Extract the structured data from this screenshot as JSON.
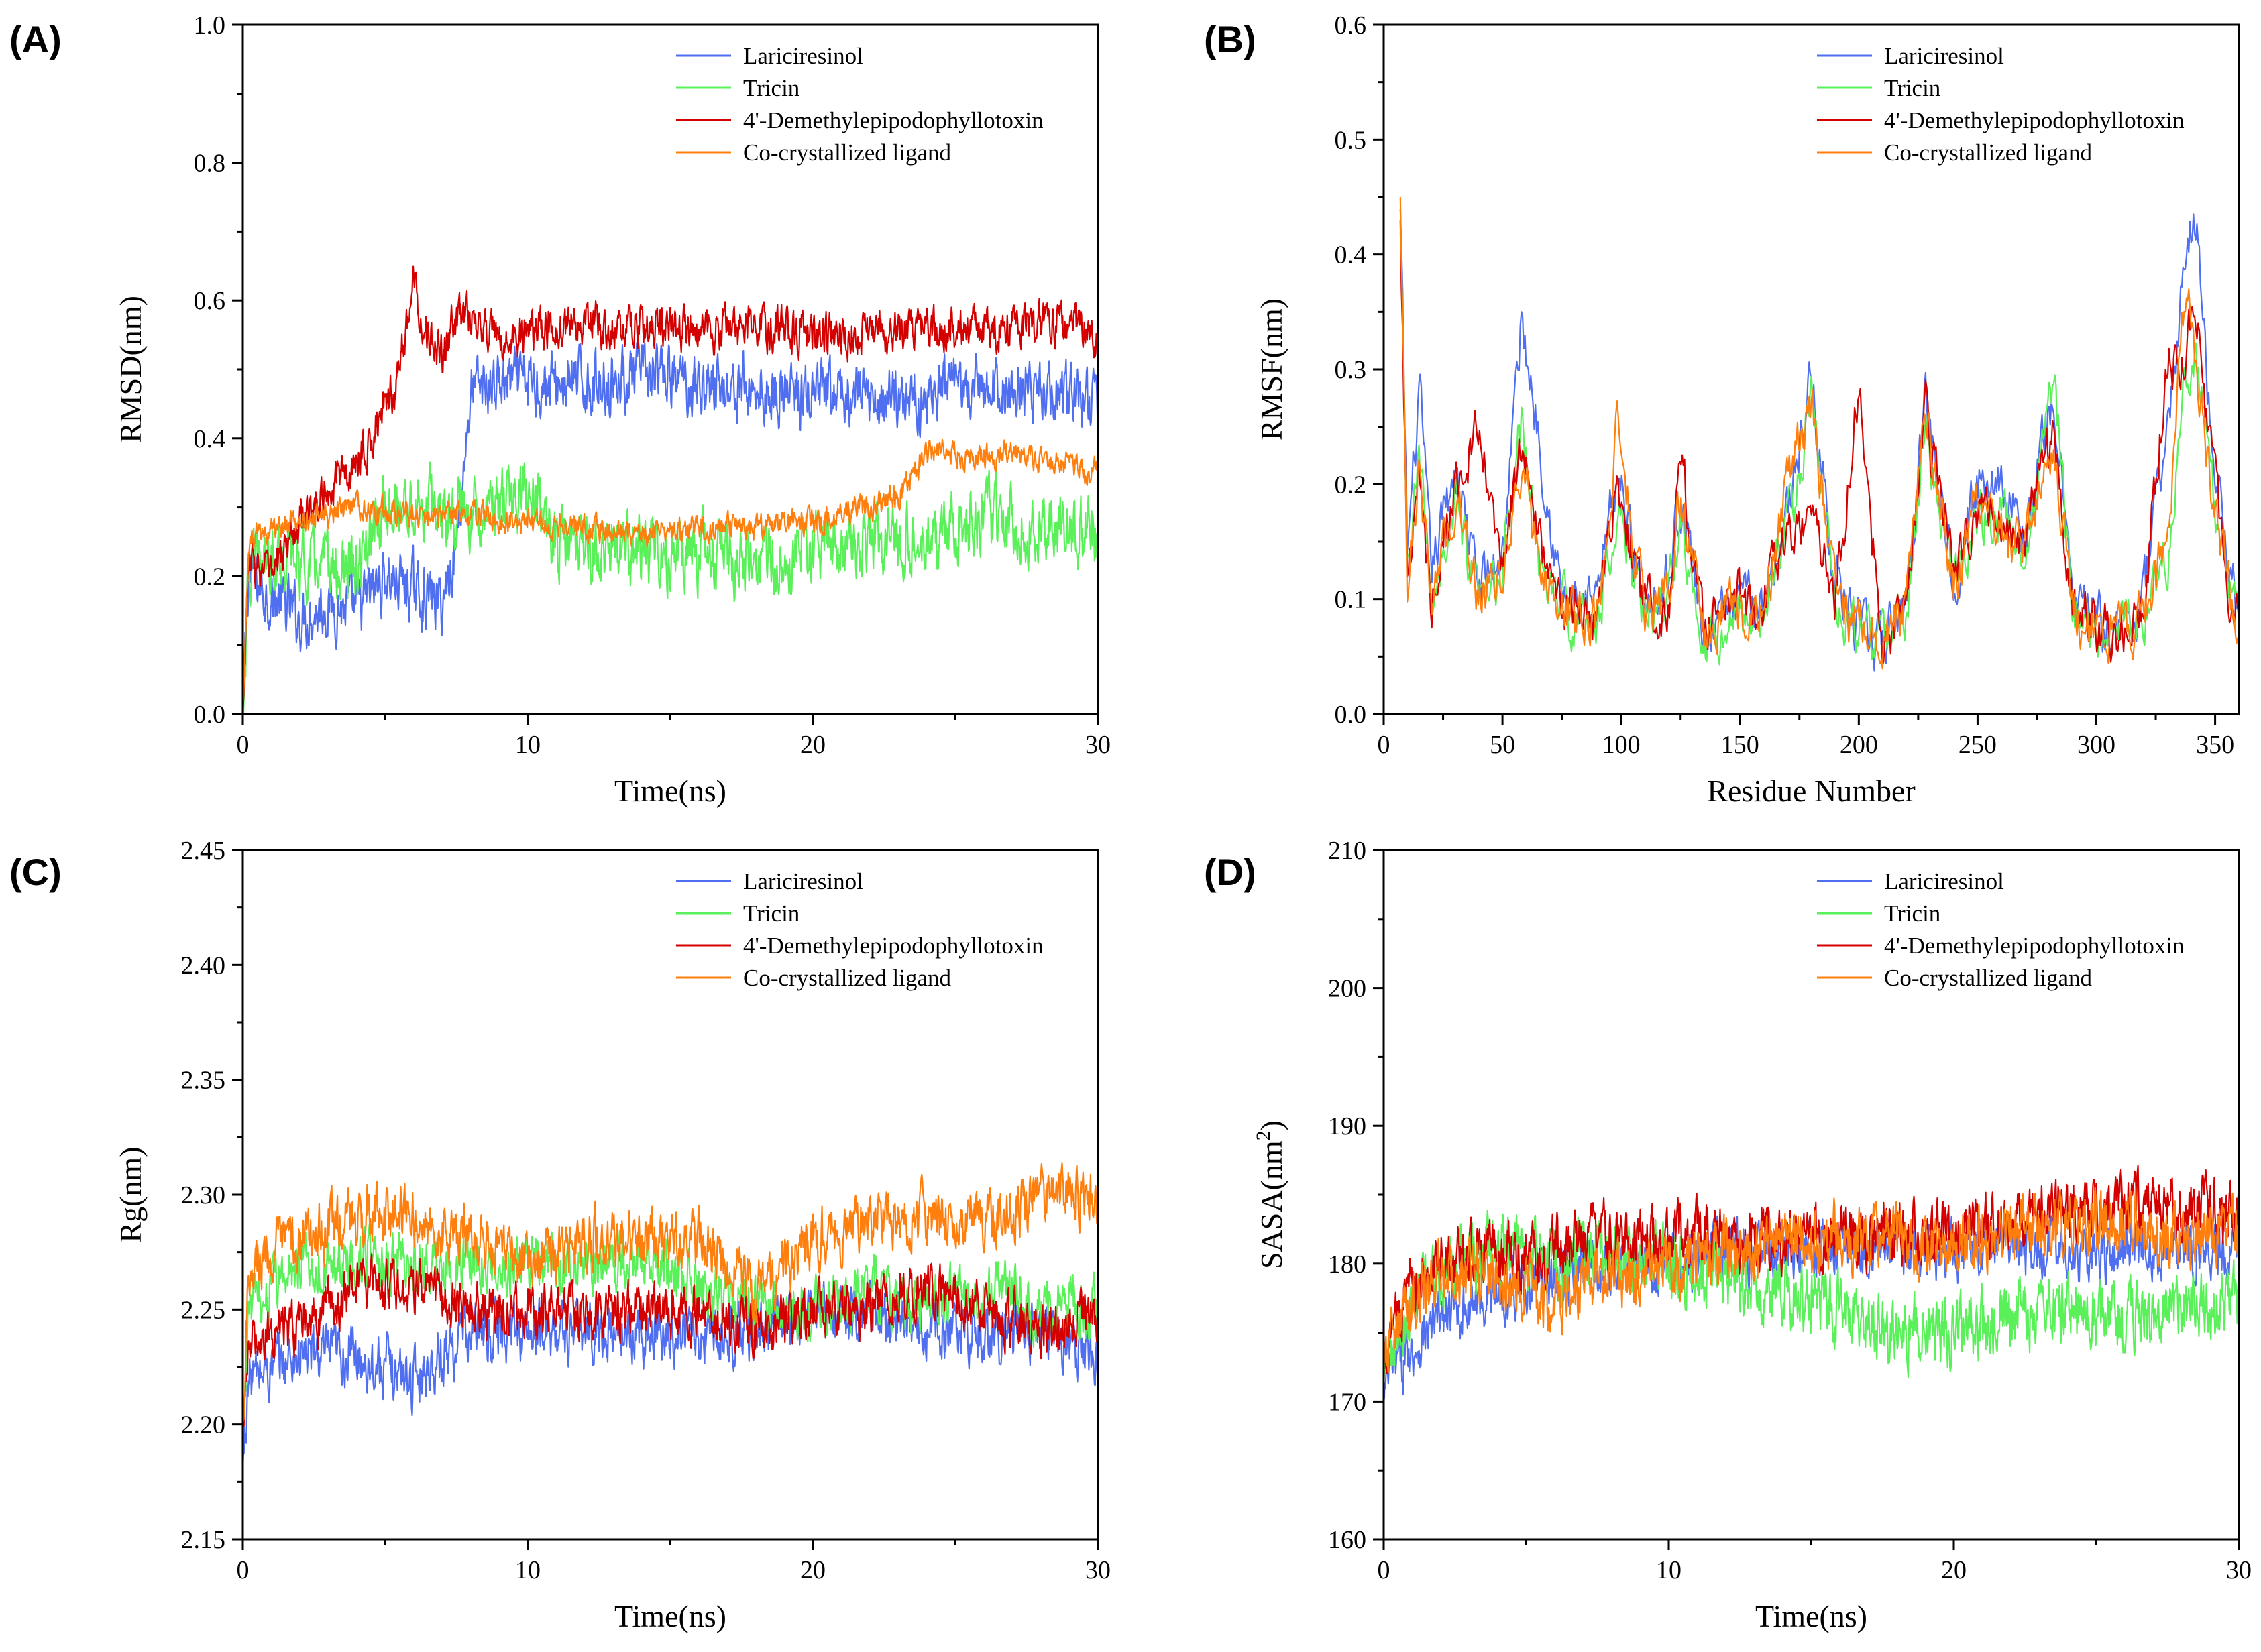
{
  "colors": {
    "Lariciresinol": "#4f6ff0",
    "Tricin": "#5af05a",
    "4'-Demethylepipodophyllotoxin": "#d40000",
    "Co-crystallized ligand": "#ff7f0e"
  },
  "chart_data": [
    {
      "label": "(A)",
      "type": "line",
      "title": "",
      "xlabel": "Time(ns)",
      "ylabel": "RMSD(nm)",
      "ylabel_sup": "",
      "ylabel_tail": "",
      "xlim": [
        0,
        30
      ],
      "ylim": [
        0,
        1.0
      ],
      "xticks": [
        0,
        10,
        20,
        30
      ],
      "yticks": [
        0.0,
        0.2,
        0.4,
        0.6,
        0.8,
        1.0
      ],
      "ytick_labels": [
        "0.0",
        "0.2",
        "0.4",
        "0.6",
        "0.8",
        "1.0"
      ],
      "legend": [
        "Lariciresinol",
        "Tricin",
        "4'-Demethylepipodophyllotoxin",
        "Co-crystallized ligand"
      ],
      "legend_position": "top-right",
      "series": [
        {
          "name": "Lariciresinol",
          "noise": 0.035,
          "x": [
            0,
            0.2,
            1,
            2,
            3,
            4,
            5,
            6,
            7,
            7.5,
            8,
            9,
            10,
            12,
            14,
            16,
            18,
            20,
            22,
            24,
            26,
            28,
            30
          ],
          "y": [
            0.0,
            0.2,
            0.17,
            0.14,
            0.16,
            0.15,
            0.2,
            0.18,
            0.16,
            0.25,
            0.47,
            0.48,
            0.48,
            0.48,
            0.49,
            0.48,
            0.47,
            0.46,
            0.46,
            0.46,
            0.47,
            0.47,
            0.46
          ]
        },
        {
          "name": "Tricin",
          "noise": 0.04,
          "x": [
            0,
            0.2,
            1,
            2,
            4,
            5,
            6,
            7,
            8,
            9,
            10,
            11,
            12,
            14,
            16,
            18,
            20,
            22,
            24,
            26,
            28,
            30
          ],
          "y": [
            0.0,
            0.2,
            0.24,
            0.22,
            0.2,
            0.3,
            0.3,
            0.3,
            0.3,
            0.3,
            0.33,
            0.25,
            0.24,
            0.23,
            0.23,
            0.22,
            0.24,
            0.25,
            0.26,
            0.28,
            0.27,
            0.26
          ]
        },
        {
          "name": "4'-Demethylepipodophyllotoxin",
          "noise": 0.025,
          "x": [
            0,
            0.2,
            1,
            2,
            3,
            4,
            5,
            5.5,
            6,
            6.5,
            7,
            7.5,
            8,
            9,
            10,
            12,
            14,
            16,
            18,
            20,
            22,
            24,
            26,
            28,
            30
          ],
          "y": [
            0.0,
            0.22,
            0.2,
            0.28,
            0.33,
            0.36,
            0.44,
            0.5,
            0.63,
            0.55,
            0.52,
            0.58,
            0.57,
            0.54,
            0.55,
            0.57,
            0.56,
            0.56,
            0.56,
            0.55,
            0.55,
            0.56,
            0.56,
            0.57,
            0.55
          ]
        },
        {
          "name": "Co-crystallized ligand",
          "noise": 0.015,
          "x": [
            0,
            0.2,
            1,
            2,
            4,
            6,
            8,
            10,
            12,
            14,
            16,
            18,
            20,
            22,
            23,
            24,
            25,
            26,
            27,
            28,
            29,
            30
          ],
          "y": [
            0.0,
            0.25,
            0.27,
            0.28,
            0.3,
            0.29,
            0.29,
            0.28,
            0.27,
            0.26,
            0.27,
            0.27,
            0.28,
            0.3,
            0.32,
            0.38,
            0.38,
            0.37,
            0.38,
            0.37,
            0.36,
            0.35
          ]
        }
      ]
    },
    {
      "label": "(B)",
      "type": "line",
      "title": "",
      "xlabel": "Residue Number",
      "ylabel": "RMSF(nm)",
      "ylabel_sup": "",
      "ylabel_tail": "",
      "xlim": [
        0,
        360
      ],
      "ylim": [
        0,
        0.6
      ],
      "xticks": [
        0,
        50,
        100,
        150,
        200,
        250,
        300,
        350
      ],
      "yticks": [
        0.0,
        0.1,
        0.2,
        0.3,
        0.4,
        0.5,
        0.6
      ],
      "ytick_labels": [
        "0.0",
        "0.1",
        "0.2",
        "0.3",
        "0.4",
        "0.5",
        "0.6"
      ],
      "legend": [
        "Lariciresinol",
        "Tricin",
        "4'-Demethylepipodophyllotoxin",
        "Co-crystallized ligand"
      ],
      "legend_position": "top-right",
      "series": [
        {
          "name": "Lariciresinol",
          "noise": 0.02,
          "x": [
            7,
            10,
            15,
            20,
            30,
            40,
            50,
            58,
            65,
            75,
            90,
            98,
            110,
            120,
            125,
            135,
            145,
            160,
            170,
            180,
            190,
            200,
            210,
            220,
            228,
            240,
            250,
            260,
            270,
            282,
            290,
            300,
            310,
            320,
            330,
            338,
            342,
            348,
            355,
            360
          ],
          "y": [
            0.44,
            0.14,
            0.28,
            0.12,
            0.22,
            0.11,
            0.14,
            0.34,
            0.25,
            0.1,
            0.09,
            0.21,
            0.1,
            0.12,
            0.19,
            0.07,
            0.09,
            0.1,
            0.18,
            0.29,
            0.12,
            0.07,
            0.06,
            0.1,
            0.28,
            0.12,
            0.2,
            0.21,
            0.15,
            0.28,
            0.1,
            0.08,
            0.07,
            0.1,
            0.25,
            0.4,
            0.44,
            0.25,
            0.15,
            0.09
          ]
        },
        {
          "name": "Tricin",
          "noise": 0.02,
          "x": [
            7,
            10,
            15,
            20,
            30,
            40,
            50,
            58,
            65,
            75,
            90,
            98,
            110,
            120,
            125,
            135,
            145,
            160,
            170,
            180,
            190,
            200,
            210,
            220,
            228,
            240,
            250,
            260,
            270,
            282,
            290,
            300,
            310,
            320,
            330,
            338,
            342,
            348,
            355,
            360
          ],
          "y": [
            0.42,
            0.12,
            0.22,
            0.1,
            0.18,
            0.09,
            0.12,
            0.26,
            0.13,
            0.09,
            0.08,
            0.18,
            0.09,
            0.1,
            0.17,
            0.07,
            0.08,
            0.09,
            0.16,
            0.27,
            0.1,
            0.07,
            0.06,
            0.09,
            0.25,
            0.11,
            0.18,
            0.17,
            0.14,
            0.3,
            0.09,
            0.07,
            0.07,
            0.09,
            0.14,
            0.3,
            0.32,
            0.2,
            0.12,
            0.09
          ]
        },
        {
          "name": "4'-Demethylepipodophyllotoxin",
          "noise": 0.02,
          "x": [
            7,
            10,
            15,
            20,
            30,
            40,
            50,
            58,
            65,
            75,
            90,
            98,
            110,
            120,
            125,
            135,
            145,
            160,
            170,
            180,
            190,
            200,
            210,
            220,
            228,
            240,
            250,
            260,
            270,
            282,
            290,
            300,
            310,
            320,
            330,
            338,
            342,
            348,
            355,
            360
          ],
          "y": [
            0.43,
            0.12,
            0.2,
            0.1,
            0.2,
            0.24,
            0.12,
            0.24,
            0.15,
            0.09,
            0.08,
            0.2,
            0.09,
            0.1,
            0.22,
            0.07,
            0.1,
            0.1,
            0.15,
            0.18,
            0.1,
            0.28,
            0.06,
            0.09,
            0.26,
            0.12,
            0.18,
            0.17,
            0.15,
            0.25,
            0.09,
            0.08,
            0.07,
            0.1,
            0.3,
            0.32,
            0.35,
            0.22,
            0.12,
            0.08
          ]
        },
        {
          "name": "Co-crystallized ligand",
          "noise": 0.02,
          "x": [
            7,
            10,
            15,
            20,
            30,
            40,
            50,
            58,
            65,
            75,
            90,
            98,
            110,
            120,
            125,
            135,
            145,
            160,
            170,
            180,
            190,
            200,
            210,
            220,
            228,
            240,
            250,
            260,
            270,
            282,
            290,
            300,
            310,
            320,
            330,
            338,
            342,
            348,
            355,
            360
          ],
          "y": [
            0.45,
            0.12,
            0.21,
            0.1,
            0.19,
            0.1,
            0.11,
            0.22,
            0.13,
            0.09,
            0.08,
            0.25,
            0.09,
            0.1,
            0.2,
            0.07,
            0.09,
            0.09,
            0.2,
            0.27,
            0.1,
            0.07,
            0.06,
            0.09,
            0.27,
            0.11,
            0.2,
            0.16,
            0.14,
            0.24,
            0.09,
            0.07,
            0.07,
            0.09,
            0.15,
            0.38,
            0.3,
            0.2,
            0.11,
            0.08
          ]
        }
      ]
    },
    {
      "label": "(C)",
      "type": "line",
      "title": "",
      "xlabel": "Time(ns)",
      "ylabel": "Rg(nm)",
      "ylabel_sup": "",
      "ylabel_tail": "",
      "xlim": [
        0,
        30
      ],
      "ylim": [
        2.15,
        2.45
      ],
      "xticks": [
        0,
        10,
        20,
        30
      ],
      "yticks": [
        2.15,
        2.2,
        2.25,
        2.3,
        2.35,
        2.4,
        2.45
      ],
      "ytick_labels": [
        "2.15",
        "2.20",
        "2.25",
        "2.30",
        "2.35",
        "2.40",
        "2.45"
      ],
      "legend": [
        "Lariciresinol",
        "Tricin",
        "4'-Demethylepipodophyllotoxin",
        "Co-crystallized ligand"
      ],
      "legend_position": "top-right",
      "series": [
        {
          "name": "Lariciresinol",
          "noise": 0.01,
          "x": [
            0,
            0.2,
            2,
            4,
            6,
            8,
            10,
            12,
            14,
            16,
            18,
            20,
            22,
            24,
            26,
            28,
            30
          ],
          "y": [
            2.18,
            2.22,
            2.23,
            2.23,
            2.22,
            2.24,
            2.24,
            2.24,
            2.24,
            2.24,
            2.24,
            2.25,
            2.25,
            2.24,
            2.24,
            2.24,
            2.23
          ]
        },
        {
          "name": "Tricin",
          "noise": 0.01,
          "x": [
            0,
            0.2,
            2,
            4,
            6,
            8,
            10,
            12,
            14,
            16,
            18,
            20,
            22,
            24,
            26,
            28,
            30
          ],
          "y": [
            2.19,
            2.25,
            2.27,
            2.27,
            2.27,
            2.27,
            2.27,
            2.27,
            2.27,
            2.26,
            2.25,
            2.25,
            2.26,
            2.25,
            2.26,
            2.25,
            2.25
          ]
        },
        {
          "name": "4'-Demethylepipodophyllotoxin",
          "noise": 0.009,
          "x": [
            0,
            0.2,
            2,
            4,
            6,
            8,
            10,
            12,
            14,
            16,
            18,
            20,
            22,
            24,
            26,
            28,
            30
          ],
          "y": [
            2.19,
            2.24,
            2.24,
            2.26,
            2.26,
            2.25,
            2.25,
            2.25,
            2.25,
            2.25,
            2.24,
            2.25,
            2.25,
            2.26,
            2.25,
            2.24,
            2.25
          ]
        },
        {
          "name": "Co-crystallized ligand",
          "noise": 0.01,
          "x": [
            0,
            0.2,
            2,
            4,
            6,
            8,
            10,
            12,
            14,
            16,
            18,
            20,
            22,
            24,
            26,
            28,
            30
          ],
          "y": [
            2.2,
            2.27,
            2.28,
            2.29,
            2.29,
            2.28,
            2.27,
            2.28,
            2.28,
            2.28,
            2.26,
            2.28,
            2.29,
            2.29,
            2.29,
            2.3,
            2.3
          ]
        }
      ]
    },
    {
      "label": "(D)",
      "type": "line",
      "title": "",
      "xlabel": "Time(ns)",
      "ylabel": "SASA(nm",
      "ylabel_sup": "2",
      "ylabel_tail": ")",
      "xlim": [
        0,
        30
      ],
      "ylim": [
        160,
        210
      ],
      "xticks": [
        0,
        10,
        20,
        30
      ],
      "yticks": [
        160,
        170,
        180,
        190,
        200,
        210
      ],
      "ytick_labels": [
        "160",
        "170",
        "180",
        "190",
        "200",
        "210"
      ],
      "legend": [
        "Lariciresinol",
        "Tricin",
        "4'-Demethylepipodophyllotoxin",
        "Co-crystallized ligand"
      ],
      "legend_position": "top-right",
      "series": [
        {
          "name": "Lariciresinol",
          "noise": 1.6,
          "x": [
            0,
            0.2,
            2,
            4,
            6,
            8,
            10,
            12,
            14,
            16,
            18,
            20,
            22,
            24,
            26,
            28,
            30
          ],
          "y": [
            170,
            172,
            176,
            178,
            179,
            180,
            180,
            181,
            181,
            181,
            181,
            181,
            181,
            181,
            181,
            181,
            181
          ]
        },
        {
          "name": "Tricin",
          "noise": 2.0,
          "x": [
            0,
            0.2,
            2,
            4,
            6,
            8,
            10,
            12,
            14,
            16,
            18,
            20,
            22,
            24,
            26,
            28,
            30
          ],
          "y": [
            171,
            174,
            180,
            181,
            180,
            181,
            180,
            179,
            178,
            177,
            175,
            175,
            176,
            177,
            176,
            177,
            177
          ]
        },
        {
          "name": "4'-Demethylepipodophyllotoxin",
          "noise": 1.8,
          "x": [
            0,
            0.2,
            2,
            4,
            6,
            8,
            10,
            12,
            14,
            16,
            18,
            20,
            22,
            24,
            26,
            28,
            30
          ],
          "y": [
            172,
            176,
            180,
            181,
            181,
            182,
            182,
            182,
            182,
            182,
            182,
            182,
            183,
            184,
            184,
            184,
            183
          ]
        },
        {
          "name": "Co-crystallized ligand",
          "noise": 1.8,
          "x": [
            0,
            0.2,
            2,
            4,
            6,
            8,
            10,
            12,
            14,
            16,
            18,
            20,
            22,
            24,
            26,
            28,
            30
          ],
          "y": [
            171,
            175,
            179,
            179,
            177,
            179,
            180,
            181,
            181,
            182,
            182,
            181,
            182,
            183,
            183,
            182,
            182
          ]
        }
      ]
    }
  ]
}
